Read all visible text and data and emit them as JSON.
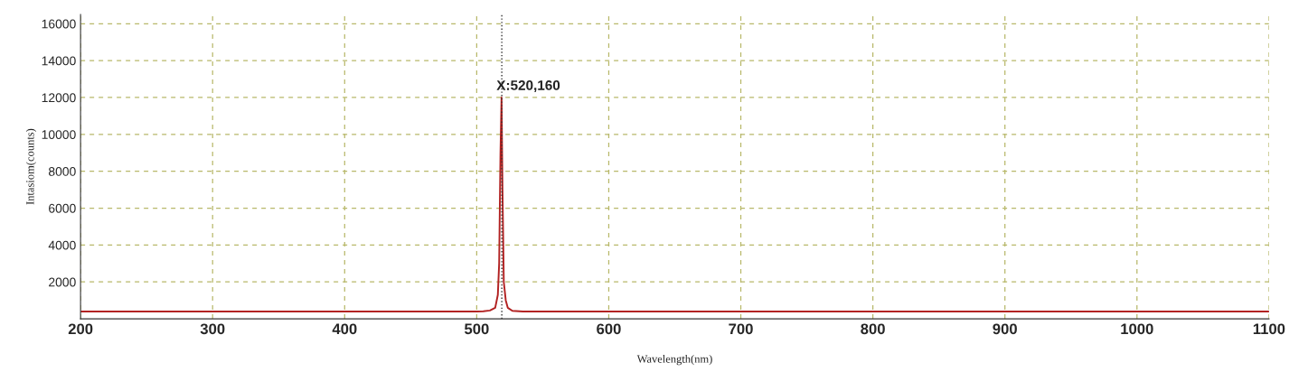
{
  "chart_data": {
    "type": "line",
    "xlabel": "Wavelength(nm)",
    "ylabel": "Intasiom(counts)",
    "series": [
      {
        "color": "#b22222",
        "x": [
          200,
          300,
          400,
          500,
          505,
          510,
          514,
          516,
          517,
          518,
          518.8,
          519.5,
          520.5,
          522,
          523.5,
          527,
          535,
          600,
          700,
          800,
          900,
          1000,
          1100
        ],
        "values": [
          400,
          400,
          400,
          400,
          410,
          450,
          600,
          1300,
          3000,
          9000,
          12000,
          7000,
          2000,
          1000,
          600,
          430,
          400,
          400,
          400,
          400,
          400,
          400,
          400
        ]
      }
    ],
    "xlim": [
      200,
      1100
    ],
    "xticks": [
      200,
      300,
      400,
      500,
      600,
      700,
      800,
      900,
      1000,
      1100
    ],
    "ylim": [
      0,
      16500
    ],
    "yticks": [
      2000,
      4000,
      6000,
      8000,
      10000,
      12000,
      14000,
      16000
    ],
    "grid": true,
    "marker": "none",
    "line_style": "solid",
    "ref_lines": [
      {
        "axis": "x",
        "value": 519,
        "label": null,
        "color": "#333333",
        "line_style": "dotted"
      }
    ],
    "annotations": [
      {
        "text": "X:520,160",
        "x": 518.8,
        "y": 12000
      }
    ]
  }
}
